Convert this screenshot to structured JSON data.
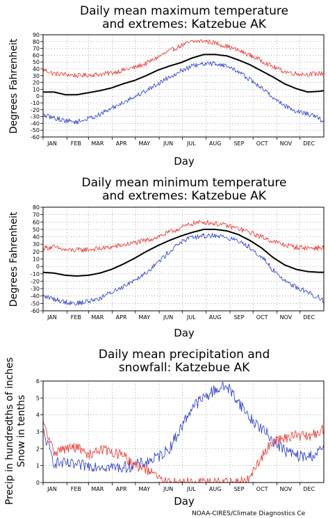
{
  "credit": "NOAA-CIRES/Climate Diagnostics Ce",
  "chart_data": [
    {
      "type": "line",
      "title": [
        "Daily mean maximum temperature",
        "and extremes: Katzebue AK"
      ],
      "ylabel": [
        "Degrees Fahrenheit"
      ],
      "xlabel": "Day",
      "ylim": [
        -60,
        90
      ],
      "yticks": [
        90,
        80,
        70,
        60,
        50,
        40,
        30,
        20,
        10,
        0,
        -10,
        -20,
        -30,
        -40,
        -50,
        -60
      ],
      "grid": true,
      "categories": [
        "JAN",
        "FEB",
        "MAR",
        "APR",
        "MAY",
        "JUN",
        "JUL",
        "AUG",
        "SEP",
        "OCT",
        "NOV",
        "DEC"
      ],
      "series": [
        {
          "color": "#e8302a",
          "noise": 3.5,
          "width": 0.8,
          "x": [
            1,
            15,
            30,
            45,
            60,
            75,
            90,
            105,
            120,
            135,
            150,
            165,
            180,
            195,
            210,
            225,
            240,
            255,
            270,
            285,
            300,
            315,
            330,
            345,
            360,
            366
          ],
          "values": [
            39,
            33,
            32,
            30,
            31,
            32,
            34,
            38,
            42,
            48,
            57,
            66,
            74,
            80,
            81,
            78,
            73,
            67,
            60,
            52,
            43,
            36,
            33,
            32,
            33,
            34
          ]
        },
        {
          "color": "#000000",
          "noise": 0,
          "width": 2,
          "x": [
            1,
            15,
            30,
            45,
            60,
            75,
            90,
            105,
            120,
            135,
            150,
            165,
            180,
            195,
            210,
            225,
            240,
            255,
            270,
            285,
            300,
            315,
            330,
            345,
            360,
            366
          ],
          "values": [
            6,
            6,
            2,
            2,
            5,
            8,
            12,
            18,
            23,
            30,
            38,
            44,
            49,
            56,
            61,
            61,
            59,
            53,
            46,
            37,
            28,
            18,
            11,
            6,
            7,
            8
          ]
        },
        {
          "color": "#2236c8",
          "noise": 3.5,
          "width": 0.8,
          "x": [
            1,
            15,
            30,
            45,
            60,
            75,
            90,
            105,
            120,
            135,
            150,
            165,
            180,
            195,
            210,
            225,
            240,
            255,
            270,
            285,
            300,
            315,
            330,
            345,
            360,
            366
          ],
          "values": [
            -28,
            -32,
            -36,
            -38,
            -33,
            -27,
            -18,
            -9,
            -1,
            8,
            18,
            28,
            37,
            44,
            47,
            48,
            44,
            36,
            24,
            12,
            -2,
            -14,
            -22,
            -26,
            -33,
            -38
          ]
        }
      ]
    },
    {
      "type": "line",
      "title": [
        "Daily mean minimum temperature",
        "and extremes: Katzebue AK"
      ],
      "ylabel": [
        "Degrees Fahrenheit"
      ],
      "xlabel": "Day",
      "ylim": [
        -60,
        80
      ],
      "yticks": [
        80,
        70,
        60,
        50,
        40,
        30,
        20,
        10,
        0,
        -10,
        -20,
        -30,
        -40,
        -50,
        -60
      ],
      "grid": true,
      "categories": [
        "JAN",
        "FEB",
        "MAR",
        "APR",
        "MAY",
        "JUN",
        "JUL",
        "AUG",
        "SEP",
        "OCT",
        "NOV",
        "DEC"
      ],
      "series": [
        {
          "color": "#e8302a",
          "noise": 3.5,
          "width": 0.8,
          "x": [
            1,
            15,
            30,
            45,
            60,
            75,
            90,
            105,
            120,
            135,
            150,
            165,
            180,
            195,
            210,
            225,
            240,
            255,
            270,
            285,
            300,
            315,
            330,
            345,
            360,
            366
          ],
          "values": [
            25,
            26,
            22,
            22,
            23,
            24,
            26,
            29,
            32,
            35,
            40,
            46,
            52,
            58,
            60,
            58,
            55,
            51,
            46,
            40,
            34,
            29,
            26,
            25,
            25,
            25
          ]
        },
        {
          "color": "#000000",
          "noise": 0,
          "width": 2,
          "x": [
            1,
            15,
            30,
            45,
            60,
            75,
            90,
            105,
            120,
            135,
            150,
            165,
            180,
            195,
            210,
            225,
            240,
            255,
            270,
            285,
            300,
            315,
            330,
            345,
            360,
            366
          ],
          "values": [
            -8,
            -9,
            -12,
            -13,
            -12,
            -9,
            -4,
            3,
            11,
            20,
            28,
            35,
            41,
            46,
            50,
            50,
            48,
            43,
            35,
            25,
            12,
            2,
            -4,
            -7,
            -8,
            -8
          ]
        },
        {
          "color": "#2236c8",
          "noise": 3.5,
          "width": 0.8,
          "x": [
            1,
            15,
            30,
            45,
            60,
            75,
            90,
            105,
            120,
            135,
            150,
            165,
            180,
            195,
            210,
            225,
            240,
            255,
            270,
            285,
            300,
            315,
            330,
            345,
            360,
            366
          ],
          "values": [
            -40,
            -44,
            -48,
            -50,
            -47,
            -43,
            -35,
            -27,
            -18,
            -8,
            5,
            20,
            33,
            39,
            41,
            42,
            39,
            34,
            26,
            13,
            -5,
            -19,
            -28,
            -35,
            -42,
            -47
          ]
        }
      ]
    },
    {
      "type": "line",
      "title": [
        "Daily mean precipitation and",
        "snowfall: Katzebue AK"
      ],
      "ylabel": [
        "Precip in hundredths of inches",
        "Snow in tenths"
      ],
      "xlabel": "Day",
      "ylim": [
        0,
        6
      ],
      "yticks": [
        6,
        5,
        4,
        3,
        2,
        1,
        0
      ],
      "grid": true,
      "categories": [
        "JAN",
        "FEB",
        "MAR",
        "APR",
        "MAY",
        "JUN",
        "JUL",
        "AUG",
        "SEP",
        "OCT",
        "NOV",
        "DEC"
      ],
      "series": [
        {
          "color": "#2236c8",
          "noise": 0.35,
          "width": 0.8,
          "x": [
            1,
            15,
            30,
            45,
            60,
            75,
            90,
            105,
            120,
            135,
            150,
            165,
            180,
            195,
            210,
            225,
            240,
            255,
            270,
            285,
            300,
            315,
            330,
            345,
            360,
            366
          ],
          "values": [
            3,
            1.2,
            1.1,
            1.0,
            1.0,
            1.0,
            0.9,
            0.9,
            1.0,
            1.2,
            1.5,
            2.0,
            3.2,
            4.5,
            5.0,
            5.5,
            5.7,
            4.8,
            3.8,
            3.2,
            2.5,
            1.9,
            1.6,
            1.5,
            1.8,
            2.2
          ]
        },
        {
          "color": "#e8302a",
          "noise": 0.3,
          "width": 0.8,
          "x": [
            1,
            15,
            30,
            45,
            60,
            75,
            90,
            105,
            120,
            135,
            150,
            165,
            180,
            195,
            210,
            225,
            240,
            255,
            270,
            285,
            300,
            315,
            330,
            345,
            360,
            366
          ],
          "values": [
            3.5,
            1.8,
            2.0,
            2.1,
            1.6,
            2.0,
            1.8,
            1.6,
            1.0,
            0.8,
            0.3,
            0.0,
            0.0,
            0.0,
            0.0,
            0.0,
            0.0,
            0.0,
            0.2,
            1.5,
            2.5,
            2.6,
            2.8,
            2.7,
            3.0,
            3.2
          ]
        }
      ]
    }
  ]
}
